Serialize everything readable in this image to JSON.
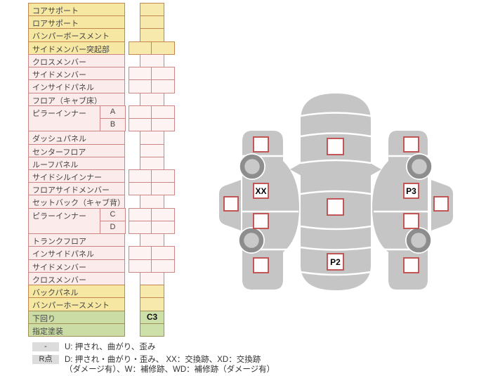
{
  "table": {
    "rows": [
      {
        "label": "コアサポート",
        "tone": "yellow",
        "cells": 1
      },
      {
        "label": "ロアサポート",
        "tone": "yellow",
        "cells": 1
      },
      {
        "label": "バンパーボースメント",
        "tone": "yellow",
        "cells": 1
      },
      {
        "label": "サイドメンバー突起部",
        "tone": "yellow",
        "cells": 2
      },
      {
        "label": "クロスメンバー",
        "tone": "pink",
        "cells": 1
      },
      {
        "label": "サイドメンバー",
        "tone": "pink",
        "cells": 2
      },
      {
        "label": "インサイドパネル",
        "tone": "pink",
        "cells": 2
      },
      {
        "label": "フロア（キャブ床）",
        "tone": "pink",
        "cells": 1
      },
      {
        "label": "ピラーインナー",
        "sub": "A",
        "tone": "pink",
        "cells": 2,
        "span": "start"
      },
      {
        "label": "",
        "sub": "B",
        "tone": "pink",
        "cells": 2,
        "span": "cont"
      },
      {
        "label": "ダッシュパネル",
        "tone": "pink",
        "cells": 1
      },
      {
        "label": "センターフロア",
        "tone": "pink",
        "cells": 1
      },
      {
        "label": "ルーフパネル",
        "tone": "pink",
        "cells": 1
      },
      {
        "label": "サイドシルインナー",
        "tone": "pink",
        "cells": 2
      },
      {
        "label": "フロアサイドメンバー",
        "tone": "pink",
        "cells": 2
      },
      {
        "label": "セットバック（キャブ背）",
        "tone": "pink",
        "cells": 1
      },
      {
        "label": "ピラーインナー",
        "sub": "C",
        "tone": "pink",
        "cells": 2,
        "span": "start"
      },
      {
        "label": "",
        "sub": "D",
        "tone": "pink",
        "cells": 2,
        "span": "cont"
      },
      {
        "label": "トランクフロア",
        "tone": "pink",
        "cells": 1
      },
      {
        "label": "インサイドパネル",
        "tone": "pink",
        "cells": 2
      },
      {
        "label": "サイドメンバー",
        "tone": "pink",
        "cells": 2
      },
      {
        "label": "クロスメンバー",
        "tone": "pink",
        "cells": 1
      },
      {
        "label": "バックパネル",
        "tone": "yellow",
        "cells": 1
      },
      {
        "label": "バンパーホースメント",
        "tone": "yellow",
        "cells": 1
      },
      {
        "label": "下回り",
        "tone": "green",
        "cells": 1,
        "value": "C3"
      },
      {
        "label": "指定塗装",
        "tone": "green",
        "cells": 1
      }
    ]
  },
  "legend": {
    "items": [
      {
        "key": "-",
        "text": "U: 押され、曲がり、歪み"
      },
      {
        "key": "R点",
        "text": "D: 押され・曲がり・歪み、 XX：交換跡、XD：交換跡\n（ダメージ有）、W：補修跡、WD：補修跡（ダメージ有）"
      }
    ]
  },
  "diagram": {
    "views": [
      "left-side-view",
      "top-view",
      "right-side-view"
    ],
    "markers": {
      "left_front_door": "XX",
      "top_trunk": "P2",
      "right_front_door": "P3"
    }
  },
  "colors": {
    "car_gray": "#c5c5c5",
    "check_border": "#bf4848",
    "row_yellow": "#f6e7a3",
    "row_pink": "#fcebeb",
    "row_green": "#cbdda4",
    "legend_key_bg": "#dcdcdc"
  }
}
